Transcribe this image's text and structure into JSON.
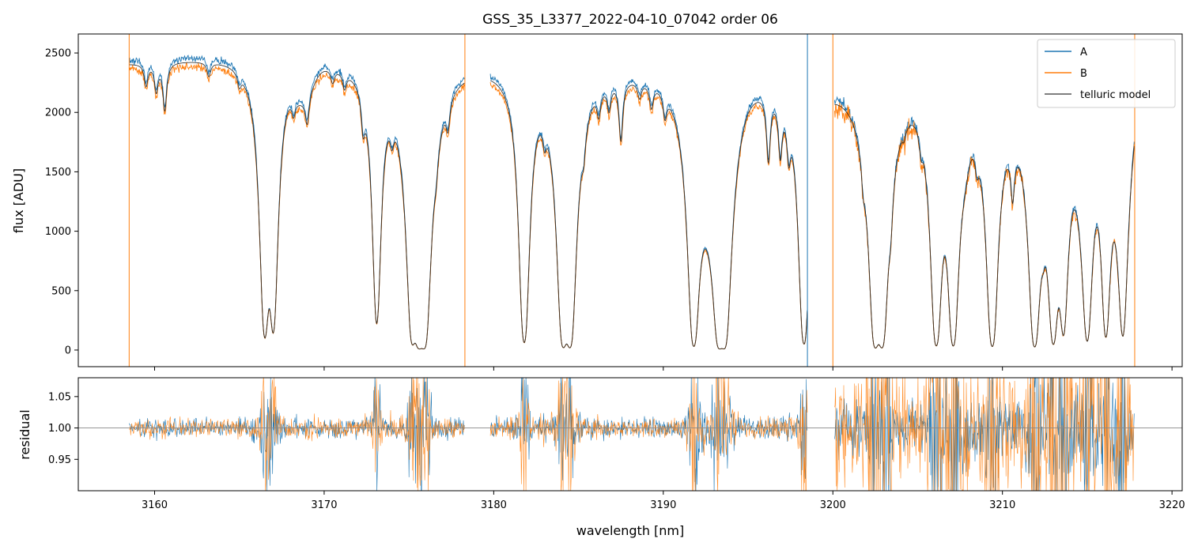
{
  "chart_data": {
    "type": "line",
    "title": "GSS_35_L3377_2022-04-10_07042  order 06",
    "xlabel": "wavelength [nm]",
    "xlim": [
      3155.5,
      3220.6
    ],
    "x_ticks": [
      3160,
      3170,
      3180,
      3190,
      3200,
      3210,
      3220
    ],
    "colors": {
      "A": "#1f77b4",
      "B": "#ff7f0e",
      "model": "#555555",
      "ref": "#888888"
    },
    "segments": [
      [
        3158.5,
        3178.3
      ],
      [
        3179.8,
        3198.5
      ],
      [
        3200.1,
        3217.8
      ]
    ],
    "lines_deep": [
      [
        3166.5,
        0.72
      ],
      [
        3167.0,
        0.62
      ],
      [
        3173.1,
        0.58
      ],
      [
        3175.2,
        0.75
      ],
      [
        3175.6,
        0.95
      ],
      [
        3175.9,
        1.05
      ],
      [
        3181.8,
        0.9
      ],
      [
        3184.1,
        1.0
      ],
      [
        3184.5,
        1.02
      ],
      [
        3191.8,
        1.0
      ],
      [
        3193.3,
        1.0
      ],
      [
        3193.6,
        1.0
      ],
      [
        3198.3,
        0.95
      ],
      [
        3202.5,
        1.02
      ],
      [
        3202.9,
        1.0
      ],
      [
        3206.1,
        1.0
      ],
      [
        3207.1,
        1.0
      ],
      [
        3209.4,
        1.05
      ],
      [
        3211.9,
        1.05
      ],
      [
        3213.0,
        0.85
      ],
      [
        3213.6,
        0.6
      ],
      [
        3215.0,
        0.75
      ],
      [
        3216.1,
        0.7
      ],
      [
        3217.1,
        0.65
      ]
    ],
    "lines_weak": [
      [
        3159.5,
        0.08
      ],
      [
        3160.1,
        0.1
      ],
      [
        3160.6,
        0.18
      ],
      [
        3163.2,
        0.05
      ],
      [
        3165.0,
        0.05
      ],
      [
        3168.2,
        0.07
      ],
      [
        3169.0,
        0.12
      ],
      [
        3170.5,
        0.05
      ],
      [
        3171.2,
        0.06
      ],
      [
        3172.3,
        0.15
      ],
      [
        3174.0,
        0.1
      ],
      [
        3175.5,
        0.08
      ],
      [
        3176.6,
        0.1
      ],
      [
        3177.3,
        0.12
      ],
      [
        3183.0,
        0.1
      ],
      [
        3185.3,
        0.12
      ],
      [
        3186.2,
        0.1
      ],
      [
        3186.8,
        0.1
      ],
      [
        3187.5,
        0.25
      ],
      [
        3188.6,
        0.06
      ],
      [
        3189.3,
        0.09
      ],
      [
        3190.1,
        0.1
      ],
      [
        3196.2,
        0.3
      ],
      [
        3196.9,
        0.25
      ],
      [
        3197.4,
        0.2
      ],
      [
        3201.8,
        0.15
      ],
      [
        3203.4,
        0.25
      ],
      [
        3204.2,
        0.05
      ],
      [
        3205.2,
        0.1
      ],
      [
        3208.5,
        0.12
      ],
      [
        3210.6,
        0.3
      ],
      [
        3212.4,
        0.15
      ]
    ],
    "wide_bands": [
      [
        3168.0,
        3169.5,
        0.1
      ],
      [
        3191.6,
        3193.8,
        0.35
      ],
      [
        3207.4,
        3208.1,
        0.12
      ],
      [
        3212.1,
        3212.7,
        0.1
      ],
      [
        3214.3,
        3215.4,
        0.2
      ],
      [
        3216.4,
        3217.6,
        0.25
      ]
    ],
    "continuum_A": [
      [
        3158.5,
        2460
      ],
      [
        3165.0,
        2530
      ],
      [
        3170.0,
        2520
      ],
      [
        3175.0,
        2480
      ],
      [
        3178.3,
        2490
      ],
      [
        3180.0,
        2490
      ],
      [
        3185.0,
        2470
      ],
      [
        3190.0,
        2400
      ],
      [
        3193.0,
        2220
      ],
      [
        3195.0,
        2400
      ],
      [
        3198.0,
        2380
      ],
      [
        3200.0,
        2350
      ],
      [
        3203.0,
        2250
      ],
      [
        3205.0,
        2380
      ],
      [
        3208.0,
        2280
      ],
      [
        3210.0,
        2200
      ],
      [
        3214.0,
        2150
      ],
      [
        3218.0,
        2400
      ]
    ],
    "offset_B": -0.03,
    "flux_panel": {
      "ylabel": "flux [ADU]",
      "ylim": [
        -140,
        2660
      ],
      "y_ticks": [
        0,
        500,
        1000,
        1500,
        2000,
        2500
      ]
    },
    "residual_panel": {
      "ylabel": "residual",
      "ylim": [
        0.9,
        1.08
      ],
      "y_ticks": [
        0.95,
        1.0,
        1.05
      ],
      "y_tick_labels": [
        "0.95",
        "1.00",
        "1.05"
      ],
      "reference_y": 1.0
    },
    "vertical_spikes": [
      {
        "x": 3158.5,
        "series": "B"
      },
      {
        "x": 3178.3,
        "series": "B"
      },
      {
        "x": 3198.5,
        "series": "A"
      },
      {
        "x": 3200.0,
        "series": "B"
      },
      {
        "x": 3217.8,
        "series": "B"
      }
    ],
    "legend": {
      "placement": "upper right",
      "entries": [
        "A",
        "B",
        "telluric model"
      ]
    },
    "series": [
      {
        "name": "A",
        "key": "A"
      },
      {
        "name": "B",
        "key": "B"
      },
      {
        "name": "telluric model",
        "key": "model"
      }
    ]
  }
}
